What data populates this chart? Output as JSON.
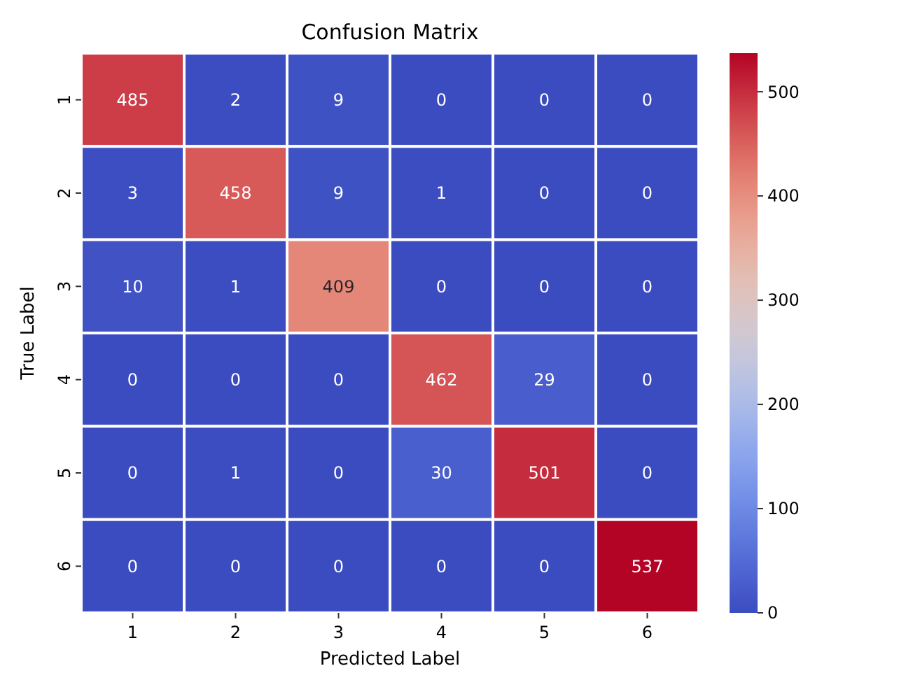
{
  "chart_data": {
    "type": "heatmap",
    "title": "Confusion Matrix",
    "xlabel": "Predicted Label",
    "ylabel": "True Label",
    "categories": [
      "1",
      "2",
      "3",
      "4",
      "5",
      "6"
    ],
    "y_categories": [
      "1",
      "2",
      "3",
      "4",
      "5",
      "6"
    ],
    "cells": [
      [
        485,
        2,
        9,
        0,
        0,
        0
      ],
      [
        3,
        458,
        9,
        1,
        0,
        0
      ],
      [
        10,
        1,
        409,
        0,
        0,
        0
      ],
      [
        0,
        0,
        0,
        462,
        29,
        0
      ],
      [
        0,
        1,
        0,
        30,
        501,
        0
      ],
      [
        0,
        0,
        0,
        0,
        0,
        537
      ]
    ],
    "clim": [
      0,
      537
    ],
    "cticks": [
      0,
      100,
      200,
      300,
      400,
      500
    ],
    "data_labels": true
  }
}
